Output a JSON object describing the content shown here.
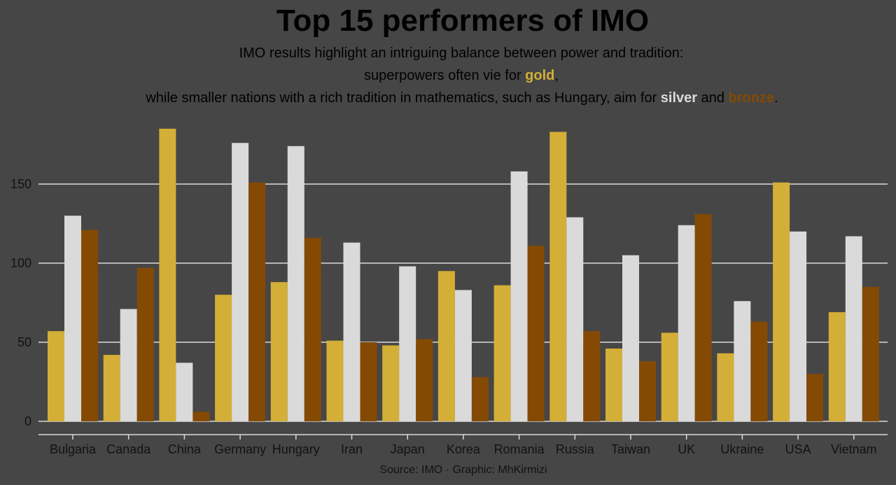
{
  "chart_data": {
    "type": "bar",
    "title": "Top 15 performers of IMO",
    "subtitle": {
      "line1": "IMO results highlight an intriguing balance between power and tradition:",
      "line2_pre": "superpowers often vie for ",
      "line2_gold": "gold",
      "line2_post": ",",
      "line3_pre": "while smaller nations with a rich tradition in mathematics, such as Hungary, aim for ",
      "line3_silver": "silver",
      "line3_mid": " and ",
      "line3_bronze": "bronze",
      "line3_post": "."
    },
    "caption": "Source: IMO · Graphic: MhKirmizi",
    "categories": [
      "Bulgaria",
      "Canada",
      "China",
      "Germany",
      "Hungary",
      "Iran",
      "Japan",
      "Korea",
      "Romania",
      "Russia",
      "Taiwan",
      "UK",
      "Ukraine",
      "USA",
      "Vietnam"
    ],
    "series": [
      {
        "key": "gold",
        "color": "#D4AF37",
        "values": [
          57,
          42,
          185,
          80,
          88,
          51,
          48,
          95,
          86,
          183,
          46,
          56,
          43,
          151,
          69
        ]
      },
      {
        "key": "silver",
        "color": "#DADADA",
        "values": [
          130,
          71,
          37,
          176,
          174,
          113,
          98,
          83,
          158,
          129,
          105,
          124,
          76,
          120,
          117
        ]
      },
      {
        "key": "bronze",
        "color": "#844A04",
        "values": [
          121,
          97,
          6,
          151,
          116,
          50,
          52,
          28,
          111,
          57,
          38,
          131,
          63,
          30,
          85
        ]
      }
    ],
    "yticks": [
      0,
      50,
      100,
      150
    ],
    "ylim": [
      0,
      190
    ],
    "grid": true,
    "xlabel": "",
    "ylabel": ""
  }
}
